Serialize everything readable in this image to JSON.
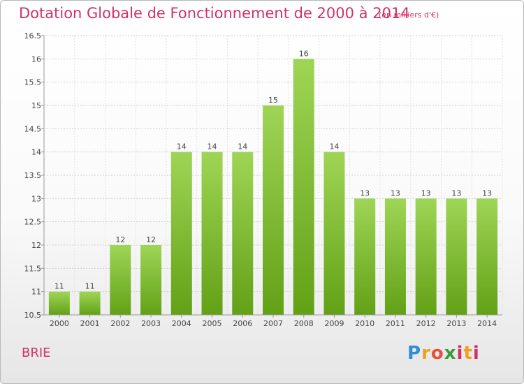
{
  "chart_data": {
    "type": "bar",
    "title": "Dotation Globale de Fonctionnement de 2000 à 2014",
    "unit_note": "(en milliers d'€)",
    "categories": [
      "2000",
      "2001",
      "2002",
      "2003",
      "2004",
      "2005",
      "2006",
      "2007",
      "2008",
      "2009",
      "2010",
      "2011",
      "2012",
      "2013",
      "2014"
    ],
    "values": [
      11,
      11,
      12,
      12,
      14,
      14,
      14,
      15,
      16,
      14,
      13,
      13,
      13,
      13,
      13
    ],
    "ylim": [
      10.5,
      16.5
    ],
    "yticks": [
      "10.5",
      "11",
      "11.5",
      "12",
      "12.5",
      "13",
      "13.5",
      "14",
      "14.5",
      "15",
      "15.5",
      "16",
      "16.5"
    ],
    "grid": true,
    "xlabel": "",
    "ylabel": "",
    "colors": {
      "bar_top": "#9fd556",
      "bar_bottom": "#62a116",
      "grid": "#cccccc",
      "accent": "#d2306a"
    }
  },
  "footer": {
    "commune": "BRIE",
    "logo_text": "Proxiti"
  }
}
